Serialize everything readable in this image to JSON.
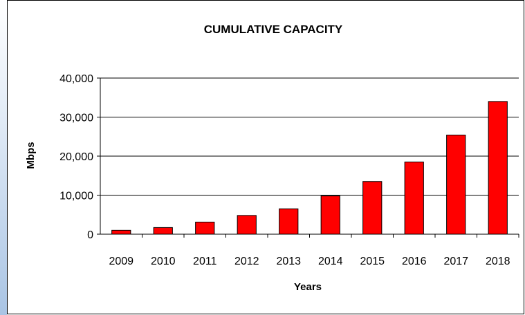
{
  "chart_data": {
    "type": "bar",
    "title": "CUMULATIVE CAPACITY",
    "xlabel": "Years",
    "ylabel": "Mbps",
    "categories": [
      "2009",
      "2010",
      "2011",
      "2012",
      "2013",
      "2014",
      "2015",
      "2016",
      "2017",
      "2018"
    ],
    "values": [
      1000,
      1700,
      3100,
      4800,
      6500,
      9800,
      13500,
      18500,
      25400,
      34000
    ],
    "ylim": [
      0,
      40000
    ],
    "yticks": [
      0,
      10000,
      20000,
      30000,
      40000
    ],
    "ytick_labels": [
      "0",
      "10,000",
      "20,000",
      "30,000",
      "40,000"
    ],
    "grid": true,
    "legend": "none",
    "colors": {
      "bar": "#ff0000",
      "bar_outline": "#000000",
      "gridline": "#000000"
    }
  }
}
